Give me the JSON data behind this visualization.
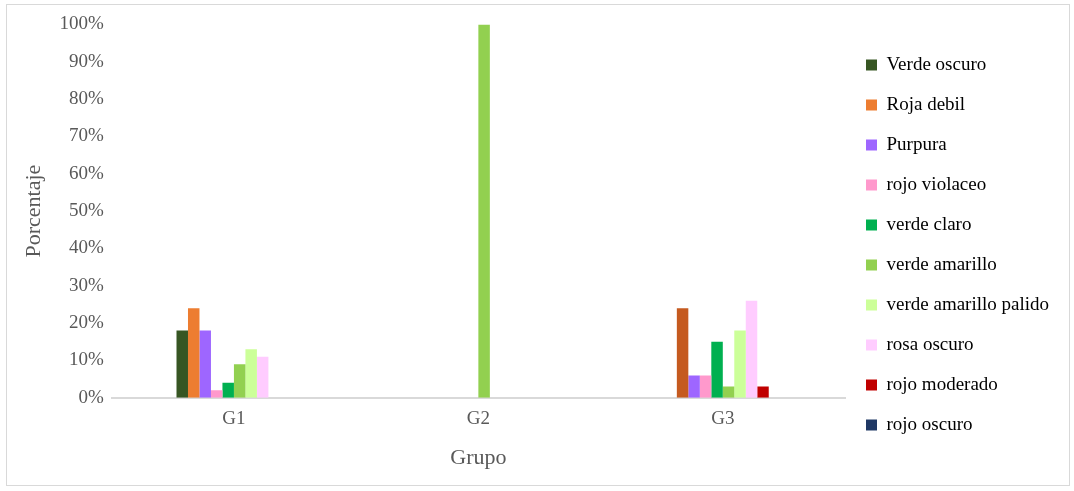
{
  "chart_data": {
    "type": "bar",
    "xlabel": "Grupo",
    "ylabel": "Porcentaje",
    "categories": [
      "G1",
      "G2",
      "G3"
    ],
    "series": [
      {
        "name": "Verde oscuro",
        "color": "#375623",
        "values": [
          18,
          0,
          0
        ]
      },
      {
        "name": "Roja debil",
        "color": "#ed7d31",
        "colors": [
          "#ed7d31",
          "#ed7d31",
          "#c55a1f"
        ],
        "values": [
          24,
          0,
          24
        ]
      },
      {
        "name": "Purpura",
        "color": "#9e66ff",
        "values": [
          18,
          0,
          6
        ]
      },
      {
        "name": "rojo violaceo",
        "color": "#ff99cc",
        "values": [
          2,
          0,
          6
        ]
      },
      {
        "name": "verde claro",
        "color": "#00b050",
        "values": [
          4,
          0,
          15
        ]
      },
      {
        "name": "verde amarillo",
        "color": "#92d050",
        "values": [
          9,
          100,
          3
        ]
      },
      {
        "name": "verde amarillo palido",
        "color": "#ccff99",
        "values": [
          13,
          0,
          18
        ]
      },
      {
        "name": "rosa oscuro",
        "color": "#ffccff",
        "values": [
          11,
          0,
          26
        ]
      },
      {
        "name": "rojo moderado",
        "color": "#c00000",
        "values": [
          0,
          0,
          3
        ]
      },
      {
        "name": "rojo oscuro",
        "color": "#1f3864",
        "values": [
          0,
          0,
          0
        ]
      }
    ],
    "ylim": [
      0,
      100
    ],
    "yticks": [
      {
        "value": 0,
        "label": "0%"
      },
      {
        "value": 10,
        "label": "10%"
      },
      {
        "value": 20,
        "label": "20%"
      },
      {
        "value": 30,
        "label": "30%"
      },
      {
        "value": 40,
        "label": "40%"
      },
      {
        "value": 50,
        "label": "50%"
      },
      {
        "value": 60,
        "label": "60%"
      },
      {
        "value": 70,
        "label": "70%"
      },
      {
        "value": 80,
        "label": "80%"
      },
      {
        "value": 90,
        "label": "90%"
      },
      {
        "value": 100,
        "label": "100%"
      }
    ],
    "grid": false,
    "legend": "right"
  }
}
